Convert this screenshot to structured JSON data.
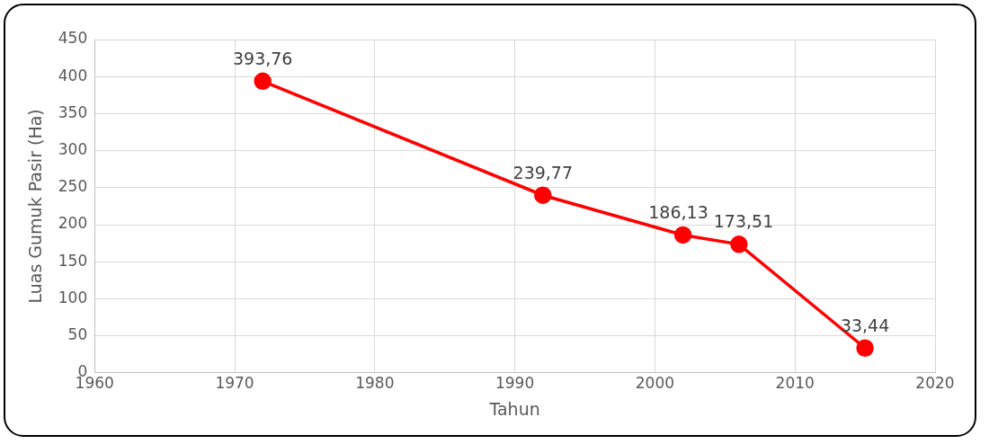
{
  "chart_data": {
    "type": "line",
    "x_label": "Tahun",
    "y_label": "Luas Gumuk Pasir (Ha)",
    "x": [
      1972,
      1992,
      2002,
      2006,
      2015
    ],
    "values": [
      393.76,
      239.77,
      186.13,
      173.51,
      33.44
    ],
    "value_labels": [
      "393,76",
      "239,77",
      "186,13",
      "173,51",
      "33,44"
    ],
    "color": "#ff0000",
    "marker": "circle",
    "line_style": "solid",
    "data_labels": true,
    "grid": true,
    "xlim": [
      1960,
      2020
    ],
    "xticks": [
      1960,
      1970,
      1980,
      1990,
      2000,
      2010,
      2020
    ],
    "ylim": [
      0,
      450
    ],
    "yticks": [
      0,
      50,
      100,
      150,
      200,
      250,
      300,
      350,
      400,
      450
    ]
  }
}
